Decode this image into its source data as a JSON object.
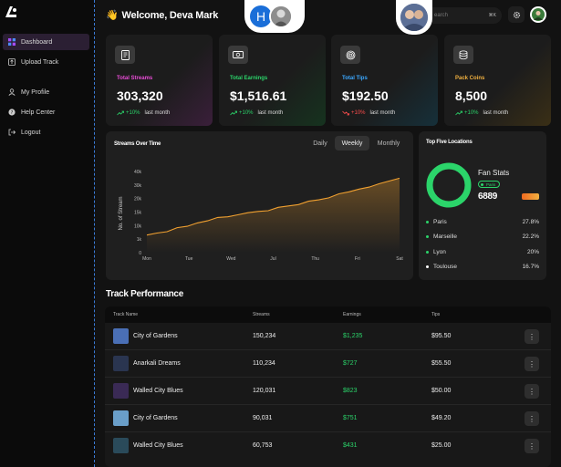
{
  "app": {
    "logo_label": "logo"
  },
  "sidebar": {
    "items": [
      {
        "label": "Dashboard",
        "icon": "grid-icon",
        "active": true
      },
      {
        "label": "Upload Track",
        "icon": "upload-icon",
        "active": false
      },
      {
        "label": "My Profile",
        "icon": "user-icon",
        "active": false
      },
      {
        "label": "Help Center",
        "icon": "help-icon",
        "active": false
      },
      {
        "label": "Logout",
        "icon": "logout-icon",
        "active": false
      }
    ]
  },
  "header": {
    "wave": "👋",
    "welcome": "Welcome, Deva Mark",
    "avatar_initial": "H",
    "search_placeholder": "earch",
    "search_shortcut": "⌘K"
  },
  "colors": {
    "accent": "#a64dff",
    "positive": "#2bd46a",
    "negative": "#ff4d4d",
    "chart_line": "#f0a030"
  },
  "stats": [
    {
      "label": "Total Streams",
      "value": "303,320",
      "change": "+10%",
      "trend": "up",
      "period": "last month",
      "label_color": "#e84cd6"
    },
    {
      "label": "Total Earnings",
      "value": "$1,516.61",
      "change": "+10%",
      "trend": "up",
      "period": "last month",
      "label_color": "#2bd46a"
    },
    {
      "label": "Total Tips",
      "value": "$192.50",
      "change": "+10%",
      "trend": "down",
      "period": "last month",
      "label_color": "#3ba8ff"
    },
    {
      "label": "Pack Coins",
      "value": "8,500",
      "change": "+10%",
      "trend": "up",
      "period": "last month",
      "label_color": "#f0b040"
    }
  ],
  "streams_chart": {
    "title": "Streams Over Time",
    "toggles": [
      "Daily",
      "Weekly",
      "Monthly"
    ],
    "active_toggle": "Weekly"
  },
  "chart_data": {
    "type": "area",
    "title": "Streams Over Time",
    "xlabel": "",
    "ylabel": "No. of Stream",
    "x_ticks": [
      "Mon",
      "Tue",
      "Wed",
      "Jul",
      "Thu",
      "Fri",
      "Sat"
    ],
    "y_ticks": [
      "0",
      "1k",
      "10k",
      "15k",
      "20k",
      "30k",
      "40k"
    ],
    "ylim": [
      0,
      6
    ],
    "series": [
      {
        "name": "Streams",
        "values": [
          1.3,
          1.45,
          1.55,
          1.85,
          1.95,
          2.2,
          2.35,
          2.6,
          2.65,
          2.8,
          2.95,
          3.05,
          3.1,
          3.35,
          3.45,
          3.55,
          3.8,
          3.9,
          4.05,
          4.35,
          4.5,
          4.7,
          4.85,
          5.1,
          5.3,
          5.5
        ]
      }
    ]
  },
  "locations": {
    "title": "Top Five Locations",
    "fan_stats_label": "Fan Stats",
    "top_city_badge": "Paris",
    "fan_count": "6889",
    "list": [
      {
        "city": "Paris",
        "percent": "27.8%"
      },
      {
        "city": "Marseille",
        "percent": "22.2%"
      },
      {
        "city": "Lyon",
        "percent": "20%"
      },
      {
        "city": "Toulouse",
        "percent": "16.7%"
      }
    ]
  },
  "tracks": {
    "title": "Track Performance",
    "headers": [
      "Track Name",
      "Streams",
      "Earnings",
      "Tips"
    ],
    "rows": [
      {
        "name": "City of Gardens",
        "streams": "150,234",
        "earnings": "$1,235",
        "tips": "$95.50",
        "art_color": "#4a6fb5"
      },
      {
        "name": "Anarkali Dreams",
        "streams": "110,234",
        "earnings": "$727",
        "tips": "$55.50",
        "art_color": "#2a3550"
      },
      {
        "name": "Walled City Blues",
        "streams": "120,031",
        "earnings": "$823",
        "tips": "$50.00",
        "art_color": "#3a2a55"
      },
      {
        "name": "City of Gardens",
        "streams": "90,031",
        "earnings": "$751",
        "tips": "$49.20",
        "art_color": "#6a9ec8"
      },
      {
        "name": "Walled City Blues",
        "streams": "60,753",
        "earnings": "$431",
        "tips": "$25.00",
        "art_color": "#2a4a5a"
      }
    ],
    "more_glyph": "⋮"
  }
}
